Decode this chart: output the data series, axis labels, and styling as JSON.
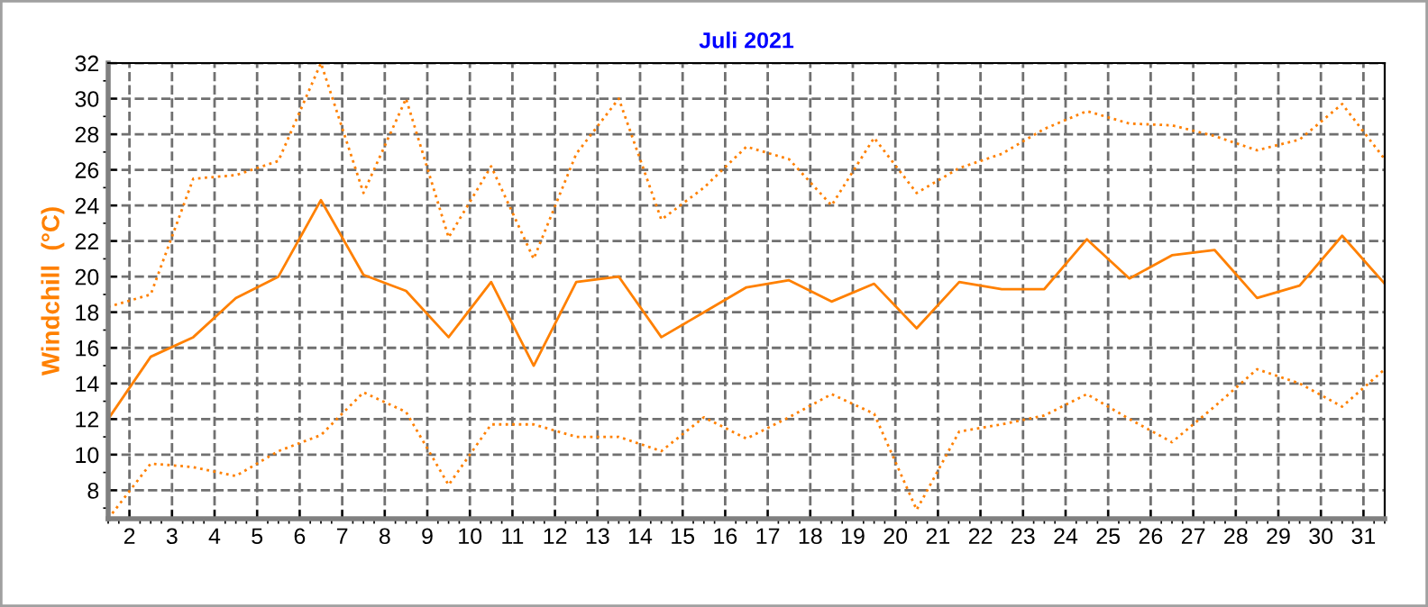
{
  "chart_data": {
    "type": "line",
    "title": "Juli 2021",
    "ylabel": "Windchill  (°C)",
    "x": [
      1.5,
      2.5,
      3.5,
      4.5,
      5.5,
      6.5,
      7.5,
      8.5,
      9.5,
      10.5,
      11.5,
      12.5,
      13.5,
      14.5,
      15.5,
      16.5,
      17.5,
      18.5,
      19.5,
      20.5,
      21.5,
      22.5,
      23.5,
      24.5,
      25.5,
      26.5,
      27.5,
      28.5,
      29.5,
      30.5,
      31.5
    ],
    "series": [
      {
        "color": "#ff8000",
        "line_style": "dotted",
        "values": [
          18.3,
          19.0,
          25.5,
          25.7,
          26.5,
          32.0,
          24.7,
          30.0,
          22.2,
          26.2,
          21.0,
          26.9,
          30.0,
          23.2,
          25.0,
          27.3,
          26.6,
          24.0,
          27.8,
          24.7,
          26.1,
          26.9,
          28.3,
          29.3,
          28.6,
          28.5,
          27.9,
          27.1,
          27.7,
          29.7,
          26.6
        ]
      },
      {
        "color": "#ff8000",
        "line_style": "solid",
        "values": [
          12.0,
          15.5,
          16.6,
          18.8,
          20.0,
          24.3,
          20.1,
          19.2,
          16.6,
          19.7,
          15.0,
          19.7,
          20.0,
          16.6,
          18.0,
          19.4,
          19.8,
          18.6,
          19.6,
          17.1,
          19.7,
          19.3,
          19.3,
          22.1,
          19.9,
          21.2,
          21.5,
          18.8,
          19.5,
          22.3,
          19.6
        ]
      },
      {
        "color": "#ff8000",
        "line_style": "dotted",
        "values": [
          6.4,
          9.5,
          9.3,
          8.8,
          10.2,
          11.1,
          13.5,
          12.4,
          8.3,
          11.7,
          11.7,
          11.0,
          11.0,
          10.2,
          12.1,
          10.9,
          12.1,
          13.4,
          12.3,
          6.9,
          11.3,
          11.7,
          12.2,
          13.4,
          12.0,
          10.7,
          12.7,
          14.8,
          14.0,
          12.7,
          14.8
        ]
      }
    ],
    "xlim": [
      1.5,
      31.5
    ],
    "ylim": [
      6.4,
      32
    ],
    "xticks": [
      2,
      3,
      4,
      5,
      6,
      7,
      8,
      9,
      10,
      11,
      12,
      13,
      14,
      15,
      16,
      17,
      18,
      19,
      20,
      21,
      22,
      23,
      24,
      25,
      26,
      27,
      28,
      29,
      30,
      31
    ],
    "yticks": [
      8,
      10,
      12,
      14,
      16,
      18,
      20,
      22,
      24,
      26,
      28,
      30,
      32
    ],
    "grid": true,
    "legend": false
  }
}
